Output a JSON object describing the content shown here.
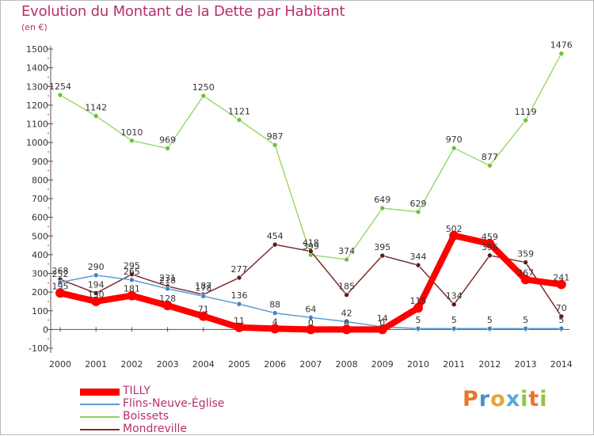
{
  "title": "Evolution du Montant de la Dette par Habitant",
  "unit_label": "(en €)",
  "logo": {
    "text": "Proxiti",
    "letters": [
      {
        "ch": "P",
        "color": "#e8762c"
      },
      {
        "ch": "r",
        "color": "#4a90c8"
      },
      {
        "ch": "o",
        "color": "#e8a33a"
      },
      {
        "ch": "x",
        "color": "#5aa9d6"
      },
      {
        "ch": "i",
        "color": "#8cc63f"
      },
      {
        "ch": "t",
        "color": "#e8762c"
      },
      {
        "ch": "i",
        "color": "#8cc63f"
      }
    ]
  },
  "chart_data": {
    "type": "line",
    "title": "Evolution du Montant de la Dette par Habitant",
    "ylabel": "(en €)",
    "xlabel": "",
    "x": [
      "2000",
      "2001",
      "2002",
      "2003",
      "2004",
      "2005",
      "2006",
      "2007",
      "2008",
      "2009",
      "2010",
      "2011",
      "2012",
      "2013",
      "2014"
    ],
    "ylim": [
      -100,
      1500
    ],
    "yticks": [
      -100,
      0,
      100,
      200,
      300,
      400,
      500,
      600,
      700,
      800,
      900,
      1000,
      1100,
      1200,
      1300,
      1400,
      1500
    ],
    "grid": false,
    "legend_position": "bottom-left",
    "series": [
      {
        "name": "Boissets",
        "color": "#8fd45e",
        "marker_color": "#6cc23a",
        "values": [
          1254,
          1142,
          1010,
          969,
          1250,
          1121,
          987,
          399,
          374,
          649,
          629,
          970,
          877,
          1119,
          1476
        ],
        "labels": [
          "1254",
          "1142",
          "1010",
          "969",
          "1250",
          "1121",
          "987",
          "399",
          "374",
          "649",
          "629",
          "970",
          "877",
          "1119",
          "1476"
        ]
      },
      {
        "name": "Mondreville",
        "color": "#7b2c2c",
        "marker_color": "#5e1b1b",
        "values": [
          268,
          194,
          295,
          231,
          187,
          277,
          454,
          418,
          185,
          395,
          344,
          134,
          396,
          359,
          70
        ],
        "labels": [
          "268",
          "194",
          "295",
          "231",
          "187",
          "277",
          "454",
          "418",
          "185",
          "395",
          "344",
          "134",
          "396",
          "359",
          "70"
        ]
      },
      {
        "name": "Flins-Neuve-Église",
        "color": "#5b9bd5",
        "marker_color": "#3f84c4",
        "values": [
          252,
          290,
          265,
          218,
          178,
          136,
          88,
          64,
          42,
          14,
          5,
          5,
          5,
          5,
          5
        ],
        "labels": [
          "252",
          "290",
          "265",
          "218",
          "178",
          "136",
          "88",
          "64",
          "42",
          "14",
          "5",
          "5",
          "5",
          "5",
          "5"
        ]
      },
      {
        "name": "TILLY",
        "color": "#ff0000",
        "marker_color": "#ff0000",
        "values": [
          195,
          150,
          181,
          128,
          71,
          11,
          4,
          0,
          0,
          0,
          115,
          502,
          459,
          267,
          241
        ],
        "labels": [
          "195",
          "150",
          "181",
          "128",
          "71",
          "11",
          "4",
          "0",
          "0",
          "0",
          "115",
          "502",
          "459",
          "267",
          "241"
        ]
      }
    ]
  },
  "legend": [
    {
      "name": "TILLY",
      "color": "#ff0000",
      "text_color": "#b5306b"
    },
    {
      "name": "Flins-Neuve-Église",
      "color": "#5b9bd5",
      "text_color": "#b5306b"
    },
    {
      "name": "Boissets",
      "color": "#8fd45e",
      "text_color": "#b5306b"
    },
    {
      "name": "Mondreville",
      "color": "#7b2c2c",
      "text_color": "#b5306b"
    }
  ]
}
